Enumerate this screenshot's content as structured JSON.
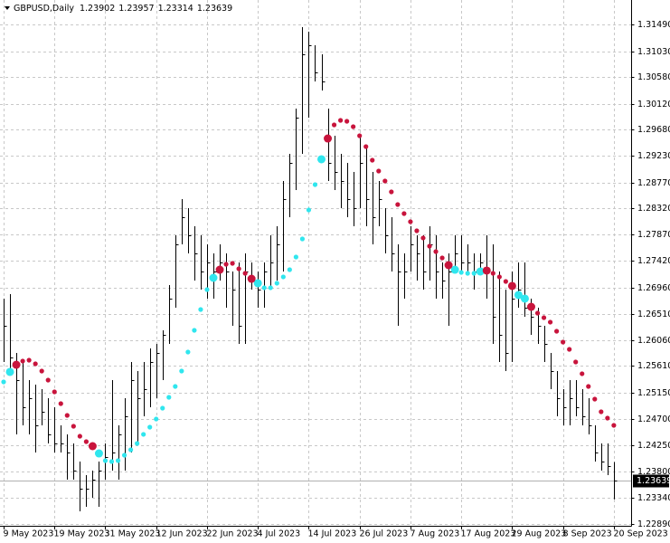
{
  "chart_data": {
    "type": "ohlc",
    "title": "GBPUSD,Daily",
    "header_values": [
      1.23902,
      1.23957,
      1.23314,
      1.23639
    ],
    "categories": [
      "9 May 2023",
      null,
      null,
      null,
      null,
      null,
      null,
      null,
      "19 May 2023",
      null,
      null,
      null,
      null,
      null,
      null,
      null,
      "31 May 2023",
      null,
      null,
      null,
      null,
      null,
      null,
      null,
      "12 Jun 2023",
      null,
      null,
      null,
      null,
      null,
      null,
      null,
      "22 Jun 2023",
      null,
      null,
      null,
      null,
      null,
      null,
      null,
      "4 Jul 2023",
      null,
      null,
      null,
      null,
      null,
      null,
      null,
      "14 Jul 2023",
      null,
      null,
      null,
      null,
      null,
      null,
      null,
      "26 Jul 2023",
      null,
      null,
      null,
      null,
      null,
      null,
      null,
      "7 Aug 2023",
      null,
      null,
      null,
      null,
      null,
      null,
      null,
      "17 Aug 2023",
      null,
      null,
      null,
      null,
      null,
      null,
      null,
      "29 Aug 2023",
      null,
      null,
      null,
      null,
      null,
      null,
      null,
      "8 Sep 2023",
      null,
      null,
      null,
      null,
      null,
      null,
      null,
      "20 Sep 2023"
    ],
    "high": [
      1.2677,
      1.26848,
      1.25835,
      1.25679,
      1.25367,
      1.25289,
      1.25212,
      1.25056,
      1.249,
      1.24588,
      1.24433,
      1.24277,
      1.23965,
      1.23731,
      1.23809,
      1.23965,
      1.24277,
      1.25367,
      1.24588,
      1.25056,
      1.25679,
      1.25523,
      1.25679,
      1.25913,
      1.25991,
      1.26224,
      1.27003,
      1.2786,
      1.28483,
      1.28328,
      1.28016,
      1.2786,
      1.27704,
      1.27549,
      1.27704,
      1.27549,
      1.27237,
      1.27393,
      1.27549,
      1.27393,
      1.27237,
      1.27393,
      1.2786,
      1.28016,
      1.28795,
      1.29262,
      1.30041,
      1.31444,
      1.31366,
      1.31132,
      1.30976,
      1.30041,
      1.29574,
      1.29262,
      1.29107,
      1.28951,
      1.29574,
      1.29418,
      1.28951,
      1.28795,
      1.28328,
      1.28172,
      1.27704,
      1.27549,
      1.28016,
      1.2786,
      1.2786,
      1.28016,
      1.2786,
      1.27393,
      1.27549,
      1.2786,
      1.2786,
      1.27704,
      1.27549,
      1.27549,
      1.2786,
      1.27704,
      1.27237,
      1.26925,
      1.27237,
      1.27393,
      1.27393,
      1.2677,
      1.26614,
      1.26302,
      1.25835,
      1.25523,
      1.25212,
      1.25367,
      1.25367,
      1.25212,
      1.25056,
      1.24588,
      1.24277,
      1.24277,
      1.23957
    ],
    "low": [
      1.25679,
      1.25523,
      1.24433,
      1.24588,
      1.24433,
      1.24121,
      1.24588,
      1.24277,
      1.24121,
      1.24121,
      1.23654,
      1.23654,
      1.23108,
      1.23186,
      1.23342,
      1.23186,
      1.23654,
      1.23809,
      1.23654,
      1.23809,
      1.24121,
      1.24277,
      1.24744,
      1.249,
      1.25056,
      1.25367,
      1.25991,
      1.26614,
      1.27704,
      1.27549,
      1.27081,
      1.26925,
      1.2677,
      1.2677,
      1.27081,
      1.26614,
      1.26302,
      1.25991,
      1.25991,
      1.26925,
      1.26614,
      1.26614,
      1.26925,
      1.27081,
      1.27237,
      1.28172,
      1.28639,
      1.29262,
      1.29886,
      1.30509,
      1.30353,
      1.28795,
      1.28639,
      1.28328,
      1.28172,
      1.28016,
      1.28328,
      1.28016,
      1.27704,
      1.28016,
      1.27549,
      1.27237,
      1.26302,
      1.2677,
      1.27237,
      1.27081,
      1.26925,
      1.27081,
      1.2677,
      1.2677,
      1.26302,
      1.27237,
      1.27237,
      1.27237,
      1.26925,
      1.27237,
      1.2677,
      1.25991,
      1.25679,
      1.25523,
      1.25679,
      1.26614,
      1.26458,
      1.26146,
      1.25991,
      1.25679,
      1.25212,
      1.24744,
      1.24588,
      1.24588,
      1.24744,
      1.24588,
      1.24433,
      1.23965,
      1.23809,
      1.23731,
      1.23314
    ],
    "close": [
      1.26302,
      1.25757,
      1.25367,
      1.249,
      1.25056,
      1.24588,
      1.24822,
      1.24433,
      1.24277,
      1.24277,
      1.24121,
      1.23809,
      1.23498,
      1.23498,
      1.23654,
      1.23809,
      1.24043,
      1.24121,
      1.24433,
      1.24744,
      1.25367,
      1.25056,
      1.25212,
      1.25679,
      1.25835,
      1.26146,
      1.2677,
      1.27704,
      1.28172,
      1.2786,
      1.27549,
      1.27237,
      1.27393,
      1.27237,
      1.27393,
      1.27237,
      1.26925,
      1.26302,
      1.27237,
      1.27081,
      1.26925,
      1.27237,
      1.27393,
      1.27704,
      1.28483,
      1.29107,
      1.29886,
      1.30976,
      1.31132,
      1.30665,
      1.30509,
      1.29107,
      1.28951,
      1.28795,
      1.28483,
      1.28328,
      1.29107,
      1.28483,
      1.28172,
      1.28483,
      1.2786,
      1.27549,
      1.27237,
      1.27237,
      1.27704,
      1.27549,
      1.27237,
      1.27704,
      1.27237,
      1.27081,
      1.27237,
      1.27549,
      1.27393,
      1.27393,
      1.27237,
      1.27393,
      1.27237,
      1.26458,
      1.26146,
      1.25835,
      1.2677,
      1.26925,
      1.26614,
      1.26458,
      1.26302,
      1.25991,
      1.25523,
      1.25056,
      1.249,
      1.25056,
      1.249,
      1.24744,
      1.24588,
      1.24121,
      1.23965,
      1.23887,
      1.23639
    ],
    "bar_color": "#000000",
    "sar_up": [
      1.25336,
      1.25508,
      null,
      null,
      null,
      null,
      null,
      null,
      null,
      null,
      null,
      null,
      null,
      null,
      null,
      1.24105,
      1.23981,
      1.23965,
      1.23981,
      1.24074,
      1.24168,
      1.24277,
      1.24433,
      1.24557,
      1.24697,
      1.24884,
      1.25071,
      1.25258,
      1.25523,
      1.2585,
      1.26224,
      1.26583,
      1.26925,
      1.27128,
      null,
      null,
      null,
      null,
      null,
      null,
      1.27035,
      1.26957,
      1.26957,
      1.27035,
      1.27144,
      1.27268,
      1.27486,
      1.27798,
      1.28296,
      1.28733,
      1.29169,
      null,
      null,
      null,
      null,
      null,
      null,
      null,
      null,
      null,
      null,
      null,
      null,
      null,
      null,
      null,
      null,
      null,
      null,
      null,
      null,
      1.27268,
      1.27221,
      1.27206,
      1.27206,
      1.27237,
      null,
      null,
      null,
      null,
      null,
      1.26832,
      1.2677,
      null,
      null,
      null,
      null,
      null,
      null,
      null,
      null,
      null,
      null,
      null,
      null,
      null,
      null
    ],
    "sar_down": [
      null,
      null,
      1.25632,
      1.25695,
      1.2571,
      1.25648,
      1.25523,
      1.25367,
      1.25165,
      1.24962,
      1.2476,
      1.24573,
      1.24401,
      1.24308,
      1.2423,
      null,
      null,
      null,
      null,
      null,
      null,
      null,
      null,
      null,
      null,
      null,
      null,
      null,
      null,
      null,
      null,
      null,
      null,
      null,
      1.27268,
      1.27362,
      1.27377,
      1.27284,
      1.27206,
      1.27112,
      null,
      null,
      null,
      null,
      null,
      null,
      null,
      null,
      null,
      null,
      null,
      1.29527,
      1.29761,
      1.29839,
      1.29823,
      1.2973,
      1.29574,
      1.29387,
      1.29153,
      1.28966,
      1.28795,
      1.28608,
      1.2839,
      1.28234,
      1.28094,
      1.27938,
      1.27814,
      1.27673,
      1.2758,
      1.27471,
      1.27346,
      null,
      null,
      null,
      null,
      null,
      1.27253,
      1.27206,
      1.27144,
      1.27066,
      1.26988,
      null,
      null,
      1.26629,
      1.2652,
      1.26442,
      1.26365,
      1.26209,
      1.26022,
      1.25897,
      1.25679,
      1.25477,
      1.25258,
      1.2504,
      1.24822,
      1.24713,
      1.24588
    ],
    "sar_up_color": "#30e6ee",
    "sar_down_color": "#c8143c",
    "current_price": 1.23639,
    "ylim": [
      1.22859,
      1.31911
    ],
    "yticks": [
      {
        "value": 1.3149,
        "label": "1.31490"
      },
      {
        "value": 1.3103,
        "label": "1.31030"
      },
      {
        "value": 1.3058,
        "label": "1.30580"
      },
      {
        "value": 1.3012,
        "label": "1.30120"
      },
      {
        "value": 1.2968,
        "label": "1.29680"
      },
      {
        "value": 1.2923,
        "label": "1.29230"
      },
      {
        "value": 1.2877,
        "label": "1.28770"
      },
      {
        "value": 1.2832,
        "label": "1.28320"
      },
      {
        "value": 1.2787,
        "label": "1.27870"
      },
      {
        "value": 1.2742,
        "label": "1.27420"
      },
      {
        "value": 1.2696,
        "label": "1.26960"
      },
      {
        "value": 1.2651,
        "label": "1.26510"
      },
      {
        "value": 1.2606,
        "label": "1.26060"
      },
      {
        "value": 1.2561,
        "label": "1.25610"
      },
      {
        "value": 1.2515,
        "label": "1.25150"
      },
      {
        "value": 1.247,
        "label": "1.24700"
      },
      {
        "value": 1.2425,
        "label": "1.24250"
      },
      {
        "value": 1.238,
        "label": "1.23800"
      },
      {
        "value": 1.2334,
        "label": "1.23340"
      },
      {
        "value": 1.2289,
        "label": "1.22890"
      }
    ],
    "grid": true
  }
}
